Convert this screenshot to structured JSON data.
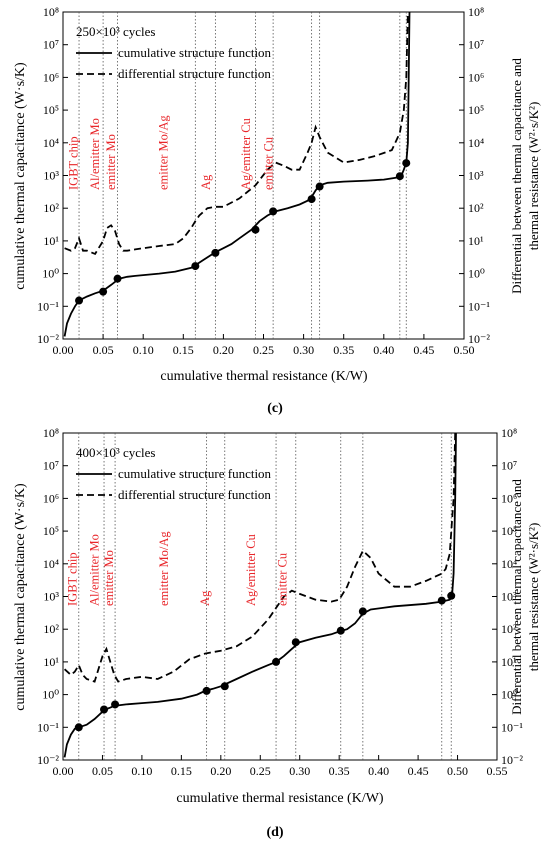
{
  "chart_data": [
    {
      "panel_label": "(c)",
      "type": "line",
      "yscale": "log",
      "y2scale": "log",
      "xlabel": "cumulative thermal resistance (K/W)",
      "ylabel": "cumulative thermal capacitance (W·s/K)",
      "y2label_line1": "Differential between thermal capacitance and",
      "y2label_line2": "thermal resistance (W²·s/K²)",
      "xlim": [
        0.0,
        0.5
      ],
      "ylim": [
        0.01,
        100000000
      ],
      "xticks": [
        "0.00",
        "0.05",
        "0.10",
        "0.15",
        "0.20",
        "0.25",
        "0.30",
        "0.35",
        "0.40",
        "0.45",
        "0.50"
      ],
      "legend_title": "250×10³  cycles",
      "legend": [
        "cumulative structure function",
        "differential structure function"
      ],
      "region_labels": [
        "IGBT chip",
        "Al/emitter Mo",
        "emitter Mo",
        "emitter Mo/Ag",
        "Ag",
        "Ag/emitter Cu",
        "emitter Cu"
      ],
      "series": [
        {
          "name": "cumulative structure function",
          "style": "solid",
          "x": [
            0.002,
            0.005,
            0.01,
            0.015,
            0.02,
            0.03,
            0.04,
            0.05,
            0.06,
            0.07,
            0.08,
            0.09,
            0.1,
            0.12,
            0.14,
            0.16,
            0.165,
            0.175,
            0.19,
            0.2,
            0.21,
            0.22,
            0.235,
            0.245,
            0.255,
            0.265,
            0.28,
            0.295,
            0.305,
            0.31,
            0.315,
            0.32,
            0.33,
            0.35,
            0.38,
            0.4,
            0.415,
            0.422,
            0.425,
            0.428,
            0.43,
            0.431,
            0.432
          ],
          "values": [
            0.012,
            0.03,
            0.06,
            0.1,
            0.15,
            0.2,
            0.25,
            0.3,
            0.45,
            0.7,
            0.8,
            0.85,
            0.9,
            1.0,
            1.15,
            1.5,
            1.8,
            2.6,
            4.5,
            6,
            8,
            12,
            22,
            40,
            60,
            80,
            100,
            130,
            170,
            220,
            350,
            500,
            600,
            650,
            700,
            750,
            850,
            1000,
            1500,
            2500,
            10000,
            1000000,
            100000000
          ]
        },
        {
          "name": "differential structure function",
          "style": "dashed",
          "x": [
            0.002,
            0.01,
            0.015,
            0.02,
            0.025,
            0.03,
            0.04,
            0.05,
            0.055,
            0.06,
            0.065,
            0.07,
            0.075,
            0.08,
            0.09,
            0.1,
            0.12,
            0.14,
            0.15,
            0.16,
            0.165,
            0.17,
            0.18,
            0.19,
            0.2,
            0.22,
            0.24,
            0.255,
            0.265,
            0.275,
            0.285,
            0.295,
            0.305,
            0.31,
            0.315,
            0.32,
            0.33,
            0.35,
            0.37,
            0.39,
            0.41,
            0.42,
            0.425,
            0.428,
            0.43
          ],
          "values": [
            6,
            5,
            6,
            12,
            5,
            5,
            4,
            10,
            25,
            30,
            20,
            8,
            5,
            5,
            5.5,
            6,
            7,
            8,
            12,
            25,
            40,
            60,
            100,
            110,
            110,
            200,
            500,
            1500,
            2500,
            2000,
            1500,
            1500,
            5000,
            10000,
            30000,
            15000,
            5000,
            2500,
            3000,
            4000,
            6000,
            20000,
            100000,
            1000000,
            100000000
          ]
        }
      ],
      "markers": {
        "series": "cumulative structure function",
        "x": [
          0.02,
          0.05,
          0.068,
          0.165,
          0.19,
          0.24,
          0.262,
          0.31,
          0.32,
          0.42,
          0.428
        ],
        "values": [
          0.15,
          0.28,
          0.7,
          1.7,
          4.3,
          22,
          80,
          190,
          460,
          950,
          2400
        ]
      },
      "vlines": [
        0.02,
        0.05,
        0.068,
        0.165,
        0.19,
        0.24,
        0.262,
        0.31,
        0.32,
        0.42,
        0.428
      ]
    },
    {
      "panel_label": "(d)",
      "type": "line",
      "yscale": "log",
      "y2scale": "log",
      "xlabel": "cumulative thermal resistance (K/W)",
      "ylabel": "cumulative thermal capacitance (W·s/K)",
      "y2label_line1": "Differential between thermal capacitance and",
      "y2label_line2": "thermal resistance (W²·s/K²)",
      "xlim": [
        0.0,
        0.55
      ],
      "ylim": [
        0.01,
        100000000
      ],
      "xticks": [
        "0.00",
        "0.05",
        "0.10",
        "0.15",
        "0.20",
        "0.25",
        "0.30",
        "0.35",
        "0.40",
        "0.45",
        "0.50",
        "0.55"
      ],
      "legend_title": "400×10³ cycles",
      "legend": [
        "cumulative structure function",
        "differential structure function"
      ],
      "region_labels": [
        "IGBT chip",
        "Al/emitter Mo",
        "emitter Mo",
        "emitter Mo/Ag",
        "Ag",
        "Ag/emitter Cu",
        "emitter Cu"
      ],
      "series": [
        {
          "name": "cumulative structure function",
          "style": "solid",
          "x": [
            0.002,
            0.005,
            0.01,
            0.015,
            0.02,
            0.03,
            0.04,
            0.05,
            0.055,
            0.06,
            0.065,
            0.08,
            0.1,
            0.12,
            0.15,
            0.17,
            0.18,
            0.19,
            0.2,
            0.22,
            0.24,
            0.26,
            0.27,
            0.28,
            0.29,
            0.3,
            0.32,
            0.34,
            0.35,
            0.36,
            0.37,
            0.38,
            0.39,
            0.42,
            0.46,
            0.48,
            0.49,
            0.493,
            0.495,
            0.497,
            0.498
          ],
          "values": [
            0.012,
            0.03,
            0.06,
            0.09,
            0.1,
            0.12,
            0.18,
            0.3,
            0.36,
            0.4,
            0.45,
            0.5,
            0.55,
            0.6,
            0.75,
            1.0,
            1.3,
            1.5,
            1.8,
            3,
            5,
            8,
            10,
            15,
            25,
            40,
            55,
            70,
            85,
            100,
            150,
            300,
            400,
            500,
            600,
            700,
            800,
            1000,
            5000,
            1000000,
            100000000
          ]
        },
        {
          "name": "differential structure function",
          "style": "dashed",
          "x": [
            0.002,
            0.01,
            0.015,
            0.02,
            0.025,
            0.03,
            0.04,
            0.05,
            0.055,
            0.06,
            0.065,
            0.07,
            0.08,
            0.1,
            0.12,
            0.14,
            0.16,
            0.18,
            0.2,
            0.22,
            0.24,
            0.26,
            0.28,
            0.29,
            0.3,
            0.32,
            0.34,
            0.35,
            0.36,
            0.37,
            0.38,
            0.39,
            0.4,
            0.42,
            0.44,
            0.46,
            0.48,
            0.485,
            0.49,
            0.495,
            0.497
          ],
          "values": [
            6,
            4,
            5,
            8,
            4,
            3,
            2.5,
            15,
            25,
            10,
            4,
            2.5,
            3,
            3.5,
            3,
            5,
            12,
            18,
            22,
            30,
            60,
            200,
            1000,
            1500,
            1200,
            800,
            700,
            800,
            2000,
            8000,
            25000,
            15000,
            5000,
            2000,
            2000,
            3000,
            5000,
            7000,
            20000,
            1000000,
            100000000
          ]
        }
      ],
      "markers": {
        "series": "cumulative structure function",
        "x": [
          0.02,
          0.052,
          0.066,
          0.182,
          0.205,
          0.27,
          0.295,
          0.352,
          0.38,
          0.48,
          0.492
        ],
        "values": [
          0.1,
          0.35,
          0.5,
          1.3,
          1.8,
          10,
          40,
          90,
          350,
          750,
          1050
        ]
      },
      "vlines": [
        0.02,
        0.052,
        0.066,
        0.182,
        0.205,
        0.27,
        0.295,
        0.352,
        0.38,
        0.48,
        0.492
      ]
    }
  ]
}
